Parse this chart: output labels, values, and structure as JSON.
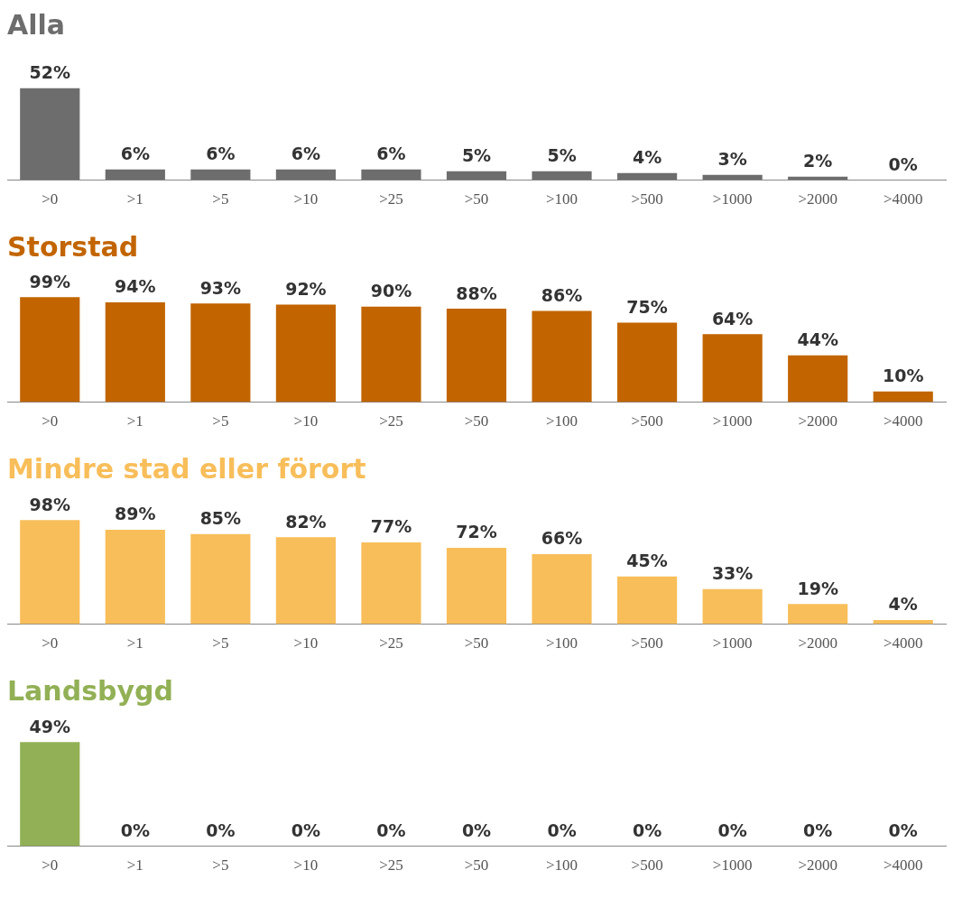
{
  "chart_data": [
    {
      "type": "bar",
      "title": "Alla",
      "categories": [
        ">0",
        ">1",
        ">5",
        ">10",
        ">25",
        ">50",
        ">100",
        ">500",
        ">1000",
        ">2000",
        ">4000"
      ],
      "values": [
        52,
        6,
        6,
        6,
        6,
        5,
        5,
        4,
        3,
        2,
        0
      ],
      "value_labels": [
        "52%",
        "6%",
        "6%",
        "6%",
        "6%",
        "5%",
        "5%",
        "4%",
        "3%",
        "2%",
        "0%"
      ],
      "color": "#6d6d6d",
      "grid": false,
      "legend": false
    },
    {
      "type": "bar",
      "title": "Storstad",
      "categories": [
        ">0",
        ">1",
        ">5",
        ">10",
        ">25",
        ">50",
        ">100",
        ">500",
        ">1000",
        ">2000",
        ">4000"
      ],
      "values": [
        99,
        94,
        93,
        92,
        90,
        88,
        86,
        75,
        64,
        44,
        10
      ],
      "value_labels": [
        "99%",
        "94%",
        "93%",
        "92%",
        "90%",
        "88%",
        "86%",
        "75%",
        "64%",
        "44%",
        "10%"
      ],
      "color": "#c26500",
      "grid": false,
      "legend": false
    },
    {
      "type": "bar",
      "title": "Mindre stad eller förort",
      "categories": [
        ">0",
        ">1",
        ">5",
        ">10",
        ">25",
        ">50",
        ">100",
        ">500",
        ">1000",
        ">2000",
        ">4000"
      ],
      "values": [
        98,
        89,
        85,
        82,
        77,
        72,
        66,
        45,
        33,
        19,
        4
      ],
      "value_labels": [
        "98%",
        "89%",
        "85%",
        "82%",
        "77%",
        "72%",
        "66%",
        "45%",
        "33%",
        "19%",
        "4%"
      ],
      "color": "#f8be5a",
      "grid": false,
      "legend": false
    },
    {
      "type": "bar",
      "title": "Landsbygd",
      "categories": [
        ">0",
        ">1",
        ">5",
        ">10",
        ">25",
        ">50",
        ">100",
        ">500",
        ">1000",
        ">2000",
        ">4000"
      ],
      "values": [
        49,
        0,
        0,
        0,
        0,
        0,
        0,
        0,
        0,
        0,
        0
      ],
      "value_labels": [
        "49%",
        "0%",
        "0%",
        "0%",
        "0%",
        "0%",
        "0%",
        "0%",
        "0%",
        "0%",
        "0%"
      ],
      "color": "#92b055",
      "grid": false,
      "legend": false
    }
  ]
}
